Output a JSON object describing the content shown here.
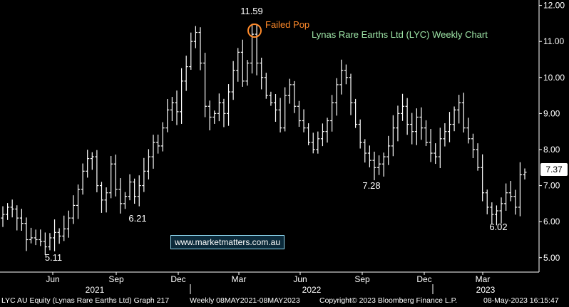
{
  "chart_data": {
    "type": "bar",
    "chart_style": "ohlc-weekly",
    "title": "Lynas Rare Earths Ltd (LYC) Weekly Chart",
    "ylim": [
      4.6,
      12.15
    ],
    "y_ticks": [
      "5.00",
      "6.00",
      "7.00",
      "8.00",
      "9.00",
      "10.00",
      "11.00",
      "12.00"
    ],
    "x_ticks": [
      "Jun",
      "Sep",
      "Dec",
      "Mar",
      "Jun",
      "Sep",
      "Dec",
      "Mar"
    ],
    "years": [
      "2021",
      "2022",
      "2023"
    ],
    "grid": false,
    "last_value": "7.37",
    "annotations": [
      {
        "label": "11.59",
        "value": 11.59
      },
      {
        "label": "Failed Pop",
        "value": 11.3
      },
      {
        "label": "6.21",
        "value": 6.21
      },
      {
        "label": "5.11",
        "value": 5.11
      },
      {
        "label": "7.28",
        "value": 7.28
      },
      {
        "label": "6.02",
        "value": 6.02
      }
    ],
    "series": [
      {
        "values": [
          6.2,
          6.4,
          6.35,
          6.1,
          5.95,
          5.5,
          5.55,
          5.5,
          5.45,
          5.3,
          5.55,
          5.7,
          5.6,
          5.8,
          6.1,
          6.45,
          6.9,
          7.4,
          7.75,
          7.8,
          7.0,
          6.6,
          6.8,
          7.6,
          6.9,
          6.5,
          6.7,
          7.1,
          6.7,
          7.0,
          7.4,
          7.8,
          8.2,
          8.1,
          8.6,
          9.1,
          9.3,
          9.05,
          9.9,
          10.3,
          11.0,
          11.25,
          10.4,
          9.2,
          8.9,
          9.0,
          9.3,
          9.0,
          9.6,
          10.2,
          10.7,
          9.9,
          10.4,
          11.2,
          10.4,
          10.0,
          9.5,
          9.3,
          9.1,
          8.6,
          9.5,
          9.8,
          9.2,
          8.8,
          8.6,
          8.2,
          8.0,
          8.3,
          8.5,
          8.8,
          9.3,
          9.8,
          10.2,
          10.0,
          9.3,
          8.7,
          8.2,
          7.9,
          7.7,
          7.5,
          7.6,
          7.8,
          8.1,
          8.6,
          9.0,
          9.2,
          8.7,
          8.5,
          8.9,
          8.6,
          8.2,
          7.9,
          7.8,
          8.3,
          8.5,
          8.7,
          9.1,
          9.3,
          8.6,
          8.3,
          8.0,
          7.5,
          6.8,
          6.4,
          6.2,
          6.3,
          6.5,
          6.8,
          6.7,
          6.4,
          7.3,
          7.37
        ]
      }
    ]
  },
  "labels": {
    "failed_pop": "Failed Pop",
    "watermark": "www.marketmatters.com.au"
  },
  "footer": {
    "left": "LYC AU Equity (Lynas Rare Earths Ltd) Graph 217",
    "range": "Weekly 08MAY2021-08MAY2023",
    "copyright": "Copyright© 2023 Bloomberg Finance L.P.",
    "timestamp": "08-May-2023 16:15:47"
  },
  "colors": {
    "background": "#000000",
    "bars": "#ffffff",
    "title": "#9fe6a8",
    "failed_pop": "#ff8a2a",
    "watermark_border": "#8fd8f0"
  }
}
